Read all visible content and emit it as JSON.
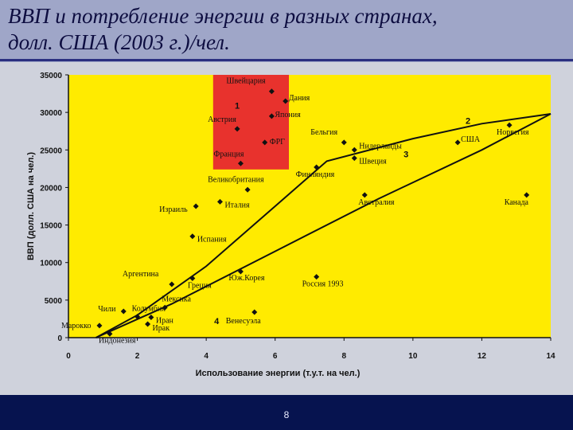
{
  "slide": {
    "title_line1": "ВВП и потребление энергии в разных странах,",
    "title_line2": "долл. США (2003 г.)/чел.",
    "page_number": "8"
  },
  "colors": {
    "plot_bg": "#ffeb00",
    "highlight_box": "#e8322d",
    "footer": "#06134f",
    "curve": "#111111"
  },
  "chart_data": {
    "type": "scatter",
    "xlabel": "Использование энергии (т.у.т. на чел.)",
    "ylabel": "ВВП (долл. США на чел.)",
    "xlim": [
      0,
      14
    ],
    "ylim": [
      0,
      35000
    ],
    "x_ticks": [
      "0",
      "2",
      "4",
      "6",
      "8",
      "10",
      "12",
      "14"
    ],
    "y_ticks": [
      "0",
      "5000",
      "10000",
      "15000",
      "20000",
      "25000",
      "30000",
      "35000"
    ],
    "grid": false,
    "points": [
      {
        "name": "Швейцария",
        "x": 5.9,
        "y": 32800
      },
      {
        "name": "Дания",
        "x": 6.3,
        "y": 31500
      },
      {
        "name": "Австрия",
        "x": 4.9,
        "y": 27800
      },
      {
        "name": "Япония",
        "x": 5.9,
        "y": 29500
      },
      {
        "name": "ФРГ",
        "x": 5.7,
        "y": 26000
      },
      {
        "name": "Франция",
        "x": 5.0,
        "y": 23200
      },
      {
        "name": "Бельгия",
        "x": 8.0,
        "y": 26000
      },
      {
        "name": "Нидерланды",
        "x": 8.3,
        "y": 25000
      },
      {
        "name": "Швеция",
        "x": 8.3,
        "y": 23900
      },
      {
        "name": "Финляндия",
        "x": 7.2,
        "y": 22700
      },
      {
        "name": "США",
        "x": 11.3,
        "y": 26000
      },
      {
        "name": "Норвегия",
        "x": 12.8,
        "y": 28300
      },
      {
        "name": "Великобритания",
        "x": 5.2,
        "y": 19700
      },
      {
        "name": "Израиль",
        "x": 3.7,
        "y": 17500
      },
      {
        "name": "Италия",
        "x": 4.4,
        "y": 18100
      },
      {
        "name": "Испания",
        "x": 3.6,
        "y": 13500
      },
      {
        "name": "Австралия",
        "x": 8.6,
        "y": 19000
      },
      {
        "name": "Канада",
        "x": 13.3,
        "y": 19000
      },
      {
        "name": "Аргентина",
        "x": 3.0,
        "y": 7100
      },
      {
        "name": "Греция",
        "x": 3.6,
        "y": 7900
      },
      {
        "name": "Юж.Корея",
        "x": 5.0,
        "y": 8800
      },
      {
        "name": "Россия 1993",
        "x": 7.2,
        "y": 8100
      },
      {
        "name": "Мексика",
        "x": 2.8,
        "y": 4000
      },
      {
        "name": "Чили",
        "x": 1.6,
        "y": 3500
      },
      {
        "name": "Колумбия",
        "x": 2.0,
        "y": 2800
      },
      {
        "name": "Иран",
        "x": 2.4,
        "y": 2700
      },
      {
        "name": "Ирак",
        "x": 2.3,
        "y": 1800
      },
      {
        "name": "Венесуэла",
        "x": 5.4,
        "y": 3400
      },
      {
        "name": "Марокко",
        "x": 0.9,
        "y": 1600
      },
      {
        "name": "Индонезия",
        "x": 1.2,
        "y": 500
      }
    ],
    "curves": [
      {
        "points": [
          [
            0.8,
            0
          ],
          [
            2,
            3000
          ],
          [
            4,
            9500
          ],
          [
            6,
            17500
          ],
          [
            7.5,
            23500
          ],
          [
            10,
            26500
          ],
          [
            12,
            28500
          ],
          [
            14,
            29800
          ]
        ]
      },
      {
        "points": [
          [
            0.8,
            0
          ],
          [
            3,
            4500
          ],
          [
            6,
            11500
          ],
          [
            9,
            18500
          ],
          [
            12,
            25000
          ],
          [
            14,
            29800
          ]
        ]
      }
    ],
    "region_labels": [
      {
        "label": "1",
        "x": 4.9,
        "y": 30500
      },
      {
        "label": "2",
        "x": 11.6,
        "y": 28500
      },
      {
        "label": "3",
        "x": 9.8,
        "y": 24000
      },
      {
        "label": "4",
        "x": 4.3,
        "y": 1800
      }
    ],
    "highlight_region": {
      "x": [
        4.2,
        6.4
      ],
      "y": [
        22400,
        35000
      ]
    }
  }
}
